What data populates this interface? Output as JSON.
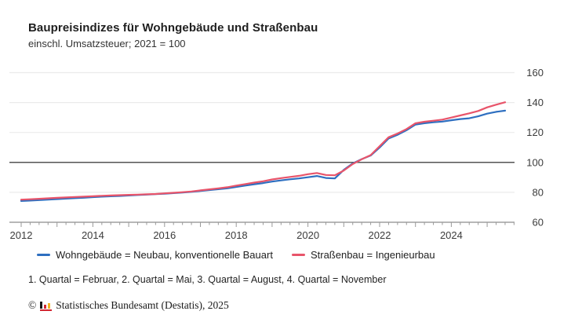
{
  "header": {
    "title": "Baupreisindizes für Wohngebäude und Straßenbau",
    "subtitle": "einschl. Umsatzsteuer; 2021 = 100"
  },
  "chart_data": {
    "type": "line",
    "title": "Baupreisindizes für Wohngebäude und Straßenbau",
    "subtitle": "einschl. Umsatzsteuer; 2021 = 100",
    "x_unit": "quarter",
    "x_start_year": 2012,
    "x_start_quarter": 1,
    "x_tick_years": [
      2012,
      2014,
      2016,
      2018,
      2020,
      2022,
      2024
    ],
    "ylim": [
      60,
      160
    ],
    "y_ticks": [
      60,
      80,
      100,
      120,
      140,
      160
    ],
    "reference_line": 100,
    "grid": "horizontal",
    "legend_position": "bottom",
    "axis_colors": {
      "grid": "#ebebeb",
      "reference": "#545454",
      "axis": "#8c8c8c",
      "tick": "#9a9a9a",
      "label": "#3b3b3b"
    },
    "series": [
      {
        "id": "wohngebaeude",
        "name": "Wohngebäude = Neubau, konventionelle Bauart",
        "color": "#2e6fc0",
        "values": [
          74.2,
          74.5,
          74.8,
          75.1,
          75.5,
          75.8,
          76.1,
          76.4,
          76.8,
          77.1,
          77.4,
          77.6,
          77.9,
          78.2,
          78.5,
          78.8,
          79.1,
          79.5,
          79.9,
          80.3,
          80.9,
          81.5,
          82.1,
          82.7,
          83.6,
          84.5,
          85.4,
          86.2,
          87.2,
          88.0,
          88.7,
          89.3,
          90.1,
          90.9,
          89.6,
          89.3,
          95.0,
          99.3,
          102.2,
          104.6,
          110.0,
          116.0,
          118.5,
          121.5,
          125.3,
          126.2,
          126.8,
          127.3,
          128.2,
          129.0,
          129.5,
          130.8,
          132.6,
          133.8,
          134.6
        ]
      },
      {
        "id": "strassenbau",
        "name": "Straßenbau = Ingenieurbau",
        "color": "#e8546a",
        "values": [
          75.1,
          75.4,
          75.7,
          76.0,
          76.3,
          76.6,
          76.9,
          77.1,
          77.4,
          77.7,
          77.9,
          78.1,
          78.3,
          78.5,
          78.7,
          78.9,
          79.3,
          79.7,
          80.1,
          80.6,
          81.3,
          82.0,
          82.7,
          83.4,
          84.5,
          85.5,
          86.5,
          87.4,
          88.6,
          89.5,
          90.3,
          91.0,
          92.1,
          92.9,
          91.6,
          91.4,
          94.6,
          98.9,
          102.1,
          104.9,
          110.8,
          116.8,
          119.3,
          122.3,
          126.2,
          127.2,
          127.9,
          128.6,
          130.0,
          131.4,
          132.8,
          134.4,
          136.8,
          138.6,
          140.2
        ]
      }
    ]
  },
  "footnote": "1. Quartal = Februar, 2. Quartal = Mai, 3. Quartal = August, 4. Quartal = November",
  "source": {
    "copyright_symbol": "©",
    "text": "Statistisches Bundesamt (Destatis), 2025",
    "logo_colors": {
      "bar1": "#1a1a1a",
      "bar2": "#d22632",
      "bar3": "#f0b322",
      "base": "#d22632"
    }
  }
}
